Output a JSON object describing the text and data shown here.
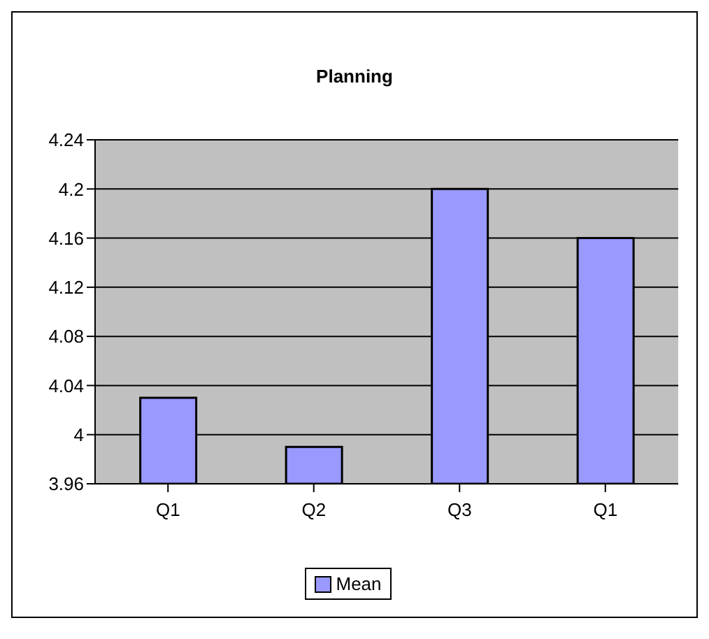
{
  "chart_data": {
    "type": "bar",
    "title": "Planning",
    "categories": [
      "Q1",
      "Q2",
      "Q3",
      "Q1"
    ],
    "series": [
      {
        "name": "Mean",
        "color": "#9999ff",
        "values": [
          4.03,
          3.99,
          4.2,
          4.16
        ]
      }
    ],
    "ylim": [
      3.96,
      4.24
    ],
    "yticks": [
      3.96,
      4,
      4.04,
      4.08,
      4.12,
      4.16,
      4.2,
      4.24
    ],
    "grid": "y",
    "legend": "bottom"
  }
}
